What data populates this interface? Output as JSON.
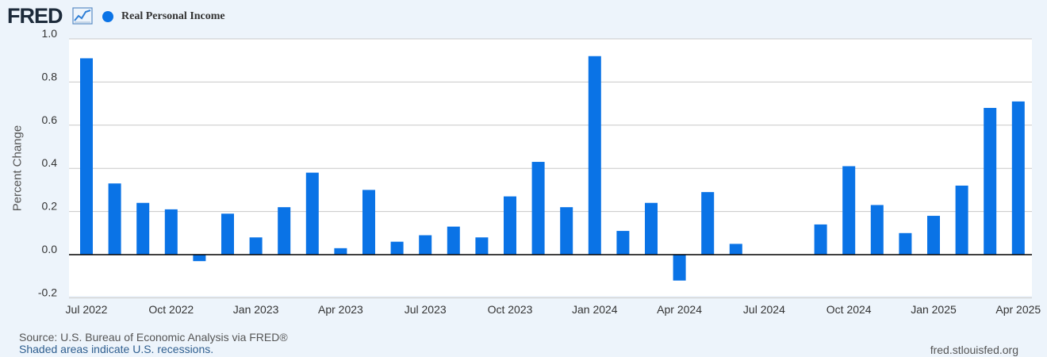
{
  "header": {
    "logo_text": "FRED",
    "logo_icon": "line-chart-icon",
    "legend_label": "Real Personal Income",
    "accent": "#0a73e6"
  },
  "footer": {
    "source": "Source: U.S. Bureau of Economic Analysis via FRED®",
    "recessions": "Shaded areas indicate U.S. recessions.",
    "site": "fred.stlouisfed.org"
  },
  "chart_data": {
    "type": "bar",
    "ylabel": "Percent Change",
    "ylim": [
      -0.22,
      1.0
    ],
    "yticks": [
      {
        "value": 1.0,
        "label": "1.0"
      },
      {
        "value": 0.8,
        "label": "0.8"
      },
      {
        "value": 0.6,
        "label": "0.6"
      },
      {
        "value": 0.4,
        "label": "0.4"
      },
      {
        "value": 0.2,
        "label": "0.2"
      },
      {
        "value": 0.0,
        "label": "0.0"
      },
      {
        "value": -0.2,
        "label": "-0.2"
      }
    ],
    "categories": [
      "2022-07",
      "2022-08",
      "2022-09",
      "2022-10",
      "2022-11",
      "2022-12",
      "2023-01",
      "2023-02",
      "2023-03",
      "2023-04",
      "2023-05",
      "2023-06",
      "2023-07",
      "2023-08",
      "2023-09",
      "2023-10",
      "2023-11",
      "2023-12",
      "2024-01",
      "2024-02",
      "2024-03",
      "2024-04",
      "2024-05",
      "2024-06",
      "2024-07",
      "2024-08",
      "2024-09",
      "2024-10",
      "2024-11",
      "2024-12",
      "2025-01",
      "2025-02",
      "2025-03",
      "2025-04"
    ],
    "xticks": [
      {
        "index": 0,
        "label": "Jul 2022"
      },
      {
        "index": 3,
        "label": "Oct 2022"
      },
      {
        "index": 6,
        "label": "Jan 2023"
      },
      {
        "index": 9,
        "label": "Apr 2023"
      },
      {
        "index": 12,
        "label": "Jul 2023"
      },
      {
        "index": 15,
        "label": "Oct 2023"
      },
      {
        "index": 18,
        "label": "Jan 2024"
      },
      {
        "index": 21,
        "label": "Apr 2024"
      },
      {
        "index": 24,
        "label": "Jul 2024"
      },
      {
        "index": 27,
        "label": "Oct 2024"
      },
      {
        "index": 30,
        "label": "Jan 2025"
      },
      {
        "index": 33,
        "label": "Apr 2025"
      }
    ],
    "series": [
      {
        "name": "Real Personal Income",
        "color": "#0a73e6",
        "values": [
          0.91,
          0.33,
          0.24,
          0.21,
          -0.03,
          0.19,
          0.08,
          0.22,
          0.38,
          0.03,
          0.3,
          0.06,
          0.09,
          0.13,
          0.08,
          0.27,
          0.43,
          0.22,
          0.92,
          0.11,
          0.24,
          -0.12,
          0.29,
          0.05,
          null,
          null,
          0.14,
          0.41,
          0.23,
          0.1,
          0.18,
          0.32,
          0.68,
          0.71
        ]
      }
    ],
    "grid": true,
    "legend": "top-left"
  }
}
